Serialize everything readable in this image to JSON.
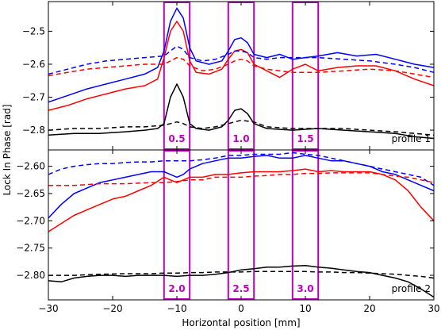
{
  "chart_data": {
    "type": "line",
    "xlabel": "Horizontal position [mm]",
    "ylabel": "Lock In Phase [rad]",
    "xlim": [
      -30,
      30
    ],
    "x_ticks": [
      -30,
      -20,
      -10,
      0,
      10,
      20,
      30
    ],
    "grid": false,
    "region_color": "#bf00bf",
    "panels": [
      {
        "label": "profile 1",
        "ylim": [
          -2.86,
          -2.41
        ],
        "y_ticks": [
          -2.8,
          -2.7,
          -2.6,
          -2.5
        ],
        "y_tick_labels": [
          "−2.8",
          "−2.7",
          "−2.6",
          "−2.5"
        ],
        "regions": [
          {
            "label": "0.5",
            "x0": -12,
            "x1": -8
          },
          {
            "label": "1.0",
            "x0": -2,
            "x1": 2
          },
          {
            "label": "1.5",
            "x0": 8,
            "x1": 12
          }
        ],
        "series": [
          {
            "color": "#0000ff",
            "dash": false,
            "x": [
              -30,
              -27,
              -24,
              -21,
              -18,
              -15,
              -13,
              -12,
              -11,
              -10,
              -9,
              -8,
              -7,
              -5,
              -3,
              -2,
              -1,
              0,
              1,
              2,
              4,
              6,
              8,
              10,
              12,
              15,
              18,
              21,
              24,
              27,
              30
            ],
            "y": [
              -2.715,
              -2.695,
              -2.675,
              -2.66,
              -2.645,
              -2.63,
              -2.61,
              -2.56,
              -2.47,
              -2.43,
              -2.46,
              -2.55,
              -2.59,
              -2.6,
              -2.59,
              -2.56,
              -2.525,
              -2.52,
              -2.535,
              -2.57,
              -2.58,
              -2.57,
              -2.585,
              -2.58,
              -2.575,
              -2.565,
              -2.575,
              -2.57,
              -2.585,
              -2.6,
              -2.61
            ]
          },
          {
            "color": "#ff0000",
            "dash": false,
            "x": [
              -30,
              -27,
              -24,
              -21,
              -18,
              -15,
              -13,
              -12,
              -11,
              -10,
              -9,
              -8,
              -7,
              -5,
              -3,
              -2,
              -1,
              0,
              1,
              2,
              4,
              6,
              8,
              10,
              12,
              15,
              18,
              21,
              24,
              27,
              30
            ],
            "y": [
              -2.74,
              -2.725,
              -2.705,
              -2.69,
              -2.675,
              -2.665,
              -2.645,
              -2.58,
              -2.5,
              -2.47,
              -2.5,
              -2.59,
              -2.625,
              -2.63,
              -2.615,
              -2.585,
              -2.56,
              -2.555,
              -2.565,
              -2.6,
              -2.62,
              -2.64,
              -2.615,
              -2.6,
              -2.62,
              -2.61,
              -2.605,
              -2.605,
              -2.62,
              -2.645,
              -2.665
            ]
          },
          {
            "color": "#0000ff",
            "dash": true,
            "x": [
              -30,
              -27,
              -24,
              -21,
              -18,
              -15,
              -12,
              -11,
              -10,
              -9,
              -8,
              -6,
              -4,
              -2,
              -1,
              0,
              1,
              2,
              4,
              6,
              8,
              12,
              16,
              20,
              24,
              27,
              30
            ],
            "y": [
              -2.63,
              -2.615,
              -2.6,
              -2.59,
              -2.585,
              -2.58,
              -2.575,
              -2.56,
              -2.545,
              -2.555,
              -2.58,
              -2.59,
              -2.585,
              -2.57,
              -2.56,
              -2.56,
              -2.565,
              -2.58,
              -2.585,
              -2.58,
              -2.58,
              -2.58,
              -2.585,
              -2.59,
              -2.6,
              -2.61,
              -2.625
            ]
          },
          {
            "color": "#ff0000",
            "dash": true,
            "x": [
              -30,
              -27,
              -24,
              -21,
              -18,
              -15,
              -12,
              -11,
              -10,
              -9,
              -8,
              -6,
              -4,
              -2,
              -1,
              0,
              1,
              2,
              4,
              6,
              8,
              12,
              16,
              20,
              24,
              27,
              30
            ],
            "y": [
              -2.635,
              -2.625,
              -2.615,
              -2.61,
              -2.605,
              -2.6,
              -2.6,
              -2.59,
              -2.58,
              -2.585,
              -2.605,
              -2.62,
              -2.615,
              -2.6,
              -2.59,
              -2.585,
              -2.59,
              -2.605,
              -2.615,
              -2.62,
              -2.625,
              -2.625,
              -2.62,
              -2.615,
              -2.62,
              -2.63,
              -2.64
            ]
          },
          {
            "color": "#000000",
            "dash": false,
            "x": [
              -30,
              -26,
              -22,
              -18,
              -15,
              -13,
              -12,
              -11,
              -10,
              -9,
              -8,
              -7,
              -5,
              -3,
              -2,
              -1,
              0,
              1,
              2,
              4,
              8,
              12,
              16,
              20,
              24,
              27,
              30
            ],
            "y": [
              -2.815,
              -2.81,
              -2.81,
              -2.805,
              -2.8,
              -2.795,
              -2.78,
              -2.7,
              -2.66,
              -2.7,
              -2.78,
              -2.795,
              -2.8,
              -2.79,
              -2.77,
              -2.74,
              -2.735,
              -2.75,
              -2.78,
              -2.795,
              -2.8,
              -2.795,
              -2.8,
              -2.805,
              -2.81,
              -2.82,
              -2.825
            ]
          },
          {
            "color": "#000000",
            "dash": true,
            "x": [
              -30,
              -26,
              -22,
              -18,
              -15,
              -12,
              -11,
              -10,
              -9,
              -8,
              -6,
              -4,
              -2,
              0,
              2,
              4,
              8,
              12,
              16,
              20,
              24,
              27,
              30
            ],
            "y": [
              -2.8,
              -2.795,
              -2.795,
              -2.79,
              -2.79,
              -2.785,
              -2.78,
              -2.775,
              -2.78,
              -2.79,
              -2.795,
              -2.79,
              -2.78,
              -2.77,
              -2.775,
              -2.79,
              -2.795,
              -2.795,
              -2.795,
              -2.8,
              -2.805,
              -2.81,
              -2.815
            ]
          }
        ]
      },
      {
        "label": "profile 2",
        "ylim": [
          -2.845,
          -2.57
        ],
        "y_ticks": [
          -2.8,
          -2.75,
          -2.7,
          -2.65,
          -2.6
        ],
        "y_tick_labels": [
          "−2.80",
          "−2.75",
          "−2.70",
          "−2.65",
          "−2.60"
        ],
        "regions": [
          {
            "label": "2.0",
            "x0": -12,
            "x1": -8
          },
          {
            "label": "2.5",
            "x0": -2,
            "x1": 2
          },
          {
            "label": "3.0",
            "x0": 8,
            "x1": 12
          }
        ],
        "series": [
          {
            "color": "#0000ff",
            "dash": false,
            "x": [
              -30,
              -28,
              -26,
              -24,
              -22,
              -20,
              -18,
              -16,
              -14,
              -12,
              -11,
              -10,
              -9,
              -8,
              -6,
              -4,
              -2,
              0,
              2,
              4,
              6,
              8,
              10,
              12,
              14,
              16,
              18,
              20,
              22,
              24,
              26,
              28,
              30
            ],
            "y": [
              -2.695,
              -2.67,
              -2.65,
              -2.64,
              -2.63,
              -2.625,
              -2.62,
              -2.615,
              -2.61,
              -2.61,
              -2.615,
              -2.62,
              -2.615,
              -2.605,
              -2.595,
              -2.59,
              -2.585,
              -2.585,
              -2.582,
              -2.58,
              -2.585,
              -2.585,
              -2.58,
              -2.585,
              -2.59,
              -2.59,
              -2.595,
              -2.6,
              -2.61,
              -2.615,
              -2.625,
              -2.635,
              -2.645
            ]
          },
          {
            "color": "#ff0000",
            "dash": false,
            "x": [
              -30,
              -28,
              -26,
              -24,
              -22,
              -20,
              -18,
              -16,
              -14,
              -12,
              -11,
              -10,
              -9,
              -8,
              -6,
              -4,
              -2,
              0,
              2,
              4,
              6,
              8,
              10,
              12,
              14,
              16,
              18,
              20,
              22,
              24,
              26,
              28,
              30
            ],
            "y": [
              -2.72,
              -2.705,
              -2.69,
              -2.68,
              -2.67,
              -2.66,
              -2.655,
              -2.645,
              -2.635,
              -2.62,
              -2.625,
              -2.63,
              -2.625,
              -2.62,
              -2.62,
              -2.615,
              -2.615,
              -2.612,
              -2.61,
              -2.61,
              -2.61,
              -2.608,
              -2.605,
              -2.61,
              -2.608,
              -2.61,
              -2.61,
              -2.61,
              -2.615,
              -2.625,
              -2.645,
              -2.675,
              -2.7
            ]
          },
          {
            "color": "#0000ff",
            "dash": true,
            "x": [
              -30,
              -28,
              -26,
              -24,
              -22,
              -20,
              -18,
              -16,
              -14,
              -12,
              -10,
              -8,
              -6,
              -4,
              -2,
              0,
              2,
              4,
              6,
              8,
              10,
              12,
              14,
              16,
              18,
              20,
              22,
              24,
              26,
              28,
              30
            ],
            "y": [
              -2.615,
              -2.605,
              -2.6,
              -2.597,
              -2.595,
              -2.595,
              -2.593,
              -2.592,
              -2.592,
              -2.59,
              -2.59,
              -2.59,
              -2.588,
              -2.585,
              -2.58,
              -2.58,
              -2.578,
              -2.578,
              -2.578,
              -2.575,
              -2.578,
              -2.58,
              -2.585,
              -2.59,
              -2.595,
              -2.6,
              -2.605,
              -2.61,
              -2.615,
              -2.62,
              -2.635
            ]
          },
          {
            "color": "#ff0000",
            "dash": true,
            "x": [
              -30,
              -26,
              -22,
              -18,
              -14,
              -12,
              -10,
              -8,
              -6,
              -4,
              -2,
              0,
              2,
              4,
              6,
              8,
              10,
              12,
              14,
              16,
              18,
              20,
              22,
              24,
              26,
              28,
              30
            ],
            "y": [
              -2.635,
              -2.635,
              -2.632,
              -2.632,
              -2.63,
              -2.63,
              -2.628,
              -2.625,
              -2.625,
              -2.62,
              -2.62,
              -2.62,
              -2.618,
              -2.617,
              -2.615,
              -2.615,
              -2.613,
              -2.613,
              -2.612,
              -2.612,
              -2.612,
              -2.612,
              -2.615,
              -2.618,
              -2.62,
              -2.625,
              -2.63
            ]
          },
          {
            "color": "#000000",
            "dash": false,
            "x": [
              -30,
              -28,
              -26,
              -24,
              -22,
              -20,
              -18,
              -16,
              -14,
              -12,
              -10,
              -8,
              -6,
              -4,
              -2,
              0,
              2,
              4,
              6,
              8,
              10,
              12,
              14,
              16,
              18,
              20,
              22,
              24,
              26,
              28,
              30
            ],
            "y": [
              -2.81,
              -2.812,
              -2.805,
              -2.802,
              -2.8,
              -2.8,
              -2.802,
              -2.8,
              -2.8,
              -2.8,
              -2.802,
              -2.8,
              -2.8,
              -2.798,
              -2.795,
              -2.79,
              -2.788,
              -2.785,
              -2.785,
              -2.783,
              -2.782,
              -2.785,
              -2.787,
              -2.79,
              -2.793,
              -2.795,
              -2.8,
              -2.805,
              -2.812,
              -2.825,
              -2.84
            ]
          },
          {
            "color": "#000000",
            "dash": true,
            "x": [
              -30,
              -26,
              -22,
              -18,
              -14,
              -12,
              -10,
              -8,
              -6,
              -4,
              -2,
              0,
              2,
              4,
              6,
              8,
              10,
              12,
              14,
              16,
              18,
              20,
              22,
              24,
              26,
              28,
              30
            ],
            "y": [
              -2.8,
              -2.8,
              -2.798,
              -2.797,
              -2.797,
              -2.796,
              -2.796,
              -2.795,
              -2.795,
              -2.794,
              -2.794,
              -2.794,
              -2.793,
              -2.793,
              -2.793,
              -2.793,
              -2.793,
              -2.794,
              -2.794,
              -2.795,
              -2.795,
              -2.796,
              -2.797,
              -2.798,
              -2.8,
              -2.802,
              -2.805
            ]
          }
        ]
      }
    ]
  }
}
